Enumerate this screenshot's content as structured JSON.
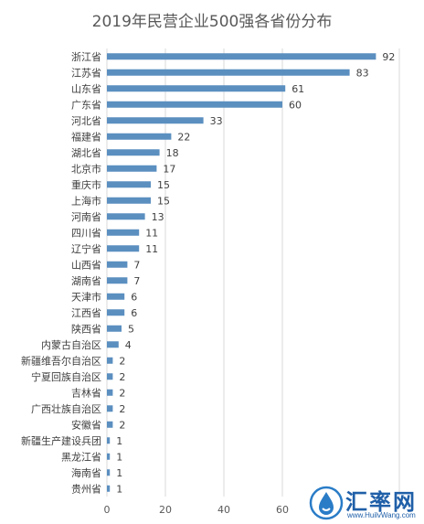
{
  "chart_data": {
    "type": "bar",
    "orientation": "horizontal",
    "title": "2019年民营企业500强各省份分布",
    "categories": [
      "浙江省",
      "江苏省",
      "山东省",
      "广东省",
      "河北省",
      "福建省",
      "湖北省",
      "北京市",
      "重庆市",
      "上海市",
      "河南省",
      "四川省",
      "辽宁省",
      "山西省",
      "湖南省",
      "天津市",
      "江西省",
      "陕西省",
      "内蒙古自治区",
      "新疆维吾尔自治区",
      "宁夏回族自治区",
      "吉林省",
      "广西壮族自治区",
      "安徽省",
      "新疆生产建设兵团",
      "黑龙江省",
      "海南省",
      "贵州省"
    ],
    "values": [
      92,
      83,
      61,
      60,
      33,
      22,
      18,
      17,
      15,
      15,
      13,
      11,
      11,
      7,
      7,
      6,
      6,
      5,
      4,
      2,
      2,
      2,
      2,
      2,
      1,
      1,
      1,
      1
    ],
    "xlim": [
      0,
      100
    ],
    "xticks": [
      0,
      20,
      40,
      60
    ],
    "grid": true,
    "bar_color": "#5b8fc0",
    "data_labels": true
  },
  "watermark": {
    "name": "汇率网",
    "url": "www.HuilvWang.com"
  }
}
